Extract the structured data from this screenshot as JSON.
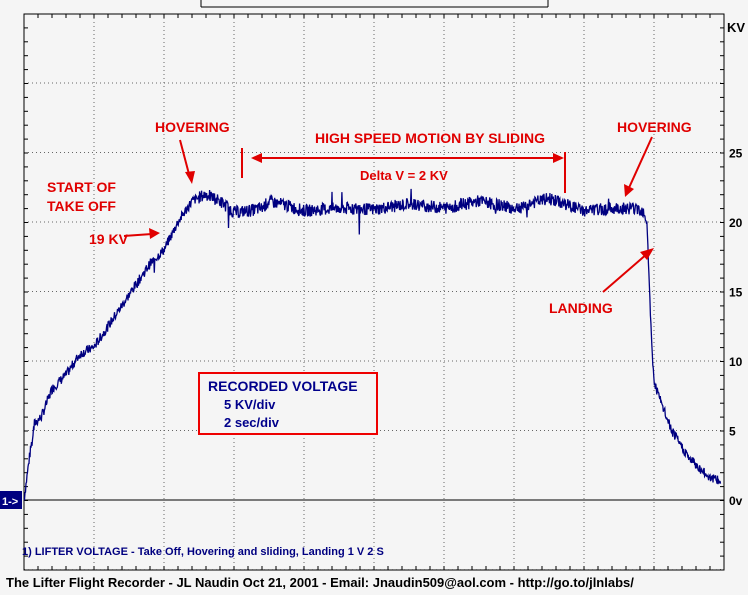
{
  "chart_data": {
    "type": "line",
    "title": "",
    "ylabel": "KV",
    "y_ticks": [
      "25",
      "20",
      "15",
      "10",
      "5",
      "0v"
    ],
    "ylim": [
      0,
      35
    ],
    "xlim": [
      0,
      20
    ],
    "grid": true,
    "x_unit": "seconds (2 sec/div)",
    "channel_marker": "1->",
    "series": [
      {
        "name": "LIFTER VOLTAGE",
        "color": "#000080",
        "x": [
          0,
          0.15,
          0.3,
          0.5,
          0.8,
          1.2,
          1.6,
          2.0,
          2.4,
          2.8,
          3.2,
          3.6,
          4.0,
          4.4,
          4.8,
          5.2,
          5.6,
          6.0,
          6.4,
          6.8,
          7.0,
          7.5,
          8.0,
          9.0,
          10.0,
          11.0,
          12.0,
          13.0,
          14.0,
          15.0,
          16.0,
          17.0,
          17.5,
          17.7,
          17.8,
          17.9,
          18.0,
          18.2,
          18.5,
          19.0,
          19.5,
          19.9
        ],
        "y": [
          0,
          3.0,
          5.5,
          6.0,
          8.0,
          9.0,
          10.5,
          11.0,
          12.5,
          14.0,
          15.5,
          17.0,
          18.0,
          20.0,
          21.5,
          22.0,
          21.5,
          20.7,
          20.8,
          21.0,
          21.5,
          21.2,
          20.8,
          21.0,
          20.9,
          21.3,
          21.0,
          21.5,
          21.0,
          21.7,
          20.8,
          21.0,
          21.0,
          20.8,
          20.0,
          13.0,
          8.5,
          7.0,
          5.0,
          3.0,
          1.8,
          1.3
        ]
      }
    ],
    "annotations": {
      "hovering_left": "HOVERING",
      "sliding_title": "HIGH SPEED MOTION BY SLIDING",
      "hovering_right": "HOVERING",
      "start_line1": "START OF",
      "start_line2": "TAKE OFF",
      "kv19": "19 KV",
      "delta": "Delta V = 2 KV",
      "landing": "LANDING"
    },
    "recorded_box": {
      "title": "RECORDED VOLTAGE",
      "line1": "5 KV/div",
      "line2": "2 sec/div"
    },
    "legend_text": "1) LIFTER VOLTAGE - Take Off, Hovering and sliding, Landing 1  V 2  S"
  },
  "footer": "The Lifter Flight Recorder - JL Naudin Oct 21, 2001 - Email: Jnaudin509@aol.com - http://go.to/jlnlabs/",
  "colors": {
    "trace": "#000080",
    "annotation": "#e00000",
    "text": "#000000",
    "background": "#f5f5f5"
  }
}
